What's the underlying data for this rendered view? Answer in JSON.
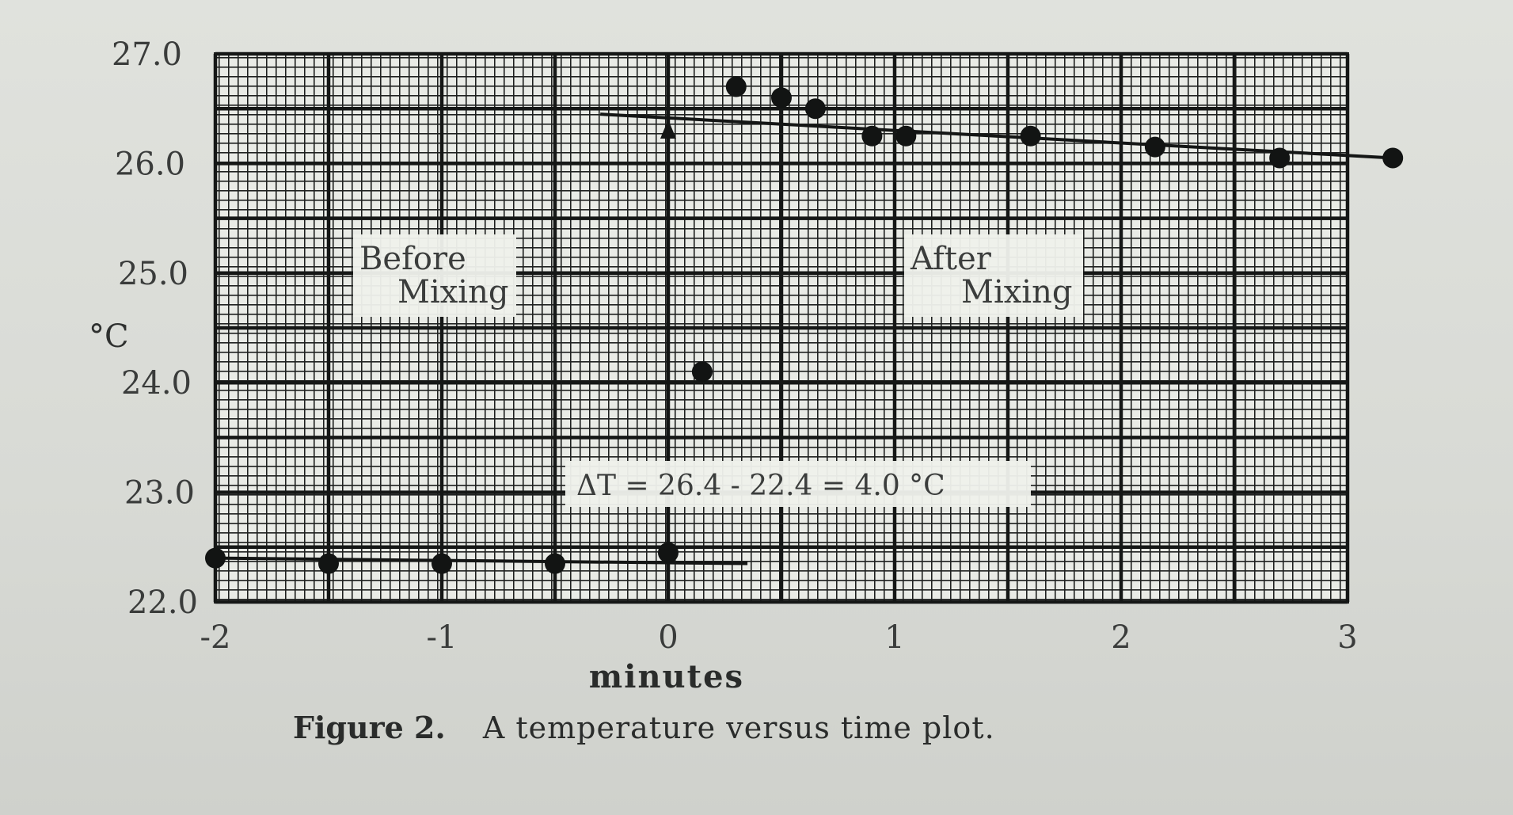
{
  "chart_data": {
    "type": "scatter",
    "title": "",
    "xlabel": "minutes",
    "ylabel": "°C",
    "xlim": [
      -2,
      3
    ],
    "ylim": [
      22.0,
      27.0
    ],
    "x_ticks": [
      "-2",
      "-1",
      "0",
      "1",
      "2",
      "3"
    ],
    "y_ticks": [
      "22.0",
      "23.0",
      "24.0",
      "25.0",
      "26.0",
      "27.0"
    ],
    "grid": true,
    "series": [
      {
        "points": [
          [
            -2.0,
            22.4
          ],
          [
            -1.5,
            22.35
          ],
          [
            -1.0,
            22.35
          ],
          [
            -0.5,
            22.35
          ],
          [
            0.0,
            22.45
          ],
          [
            0.15,
            24.1
          ],
          [
            0.3,
            26.7
          ],
          [
            0.5,
            26.6
          ],
          [
            0.65,
            26.5
          ],
          [
            0.9,
            26.25
          ],
          [
            1.05,
            26.25
          ],
          [
            1.6,
            26.25
          ],
          [
            2.15,
            26.15
          ],
          [
            2.7,
            26.05
          ],
          [
            3.2,
            26.05
          ]
        ]
      }
    ],
    "fit_lines": [
      {
        "from": [
          -2.0,
          22.4
        ],
        "to": [
          0.35,
          22.35
        ]
      },
      {
        "from": [
          -0.3,
          26.45
        ],
        "to": [
          3.2,
          26.05
        ]
      }
    ],
    "vertical_marker": {
      "x": 0.0,
      "from": 22.45,
      "to": 26.4
    },
    "annotations": {
      "before_line1": "Before",
      "before_line2": "Mixing",
      "after_line1": "After",
      "after_line2": "Mixing",
      "delta": "ΔT = 26.4 - 22.4 = 4.0 °C"
    }
  },
  "caption": {
    "label": "Figure 2.",
    "text": "A temperature versus time plot."
  }
}
